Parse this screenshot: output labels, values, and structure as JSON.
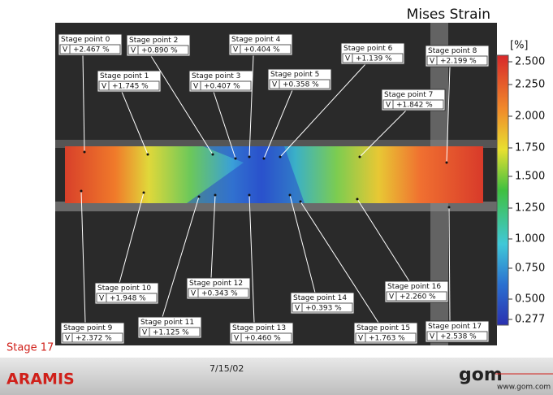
{
  "title": "Mises Strain",
  "colorbar": {
    "unit": "[%]",
    "ticks": [
      "2.500",
      "2.250",
      "2.000",
      "1.750",
      "1.500",
      "1.250",
      "1.000",
      "0.750",
      "0.500",
      "0.277"
    ]
  },
  "stage_points": [
    {
      "label": "Stage point 0",
      "type": "V",
      "value": "+2.467 %"
    },
    {
      "label": "Stage point 1",
      "type": "V",
      "value": "+1.745 %"
    },
    {
      "label": "Stage point 2",
      "type": "V",
      "value": "+0.890 %"
    },
    {
      "label": "Stage point 3",
      "type": "V",
      "value": "+0.407 %"
    },
    {
      "label": "Stage point 4",
      "type": "V",
      "value": "+0.404 %"
    },
    {
      "label": "Stage point 5",
      "type": "V",
      "value": "+0.358 %"
    },
    {
      "label": "Stage point 6",
      "type": "V",
      "value": "+1.139 %"
    },
    {
      "label": "Stage point 7",
      "type": "V",
      "value": "+1.842 %"
    },
    {
      "label": "Stage point 8",
      "type": "V",
      "value": "+2.199 %"
    },
    {
      "label": "Stage point 9",
      "type": "V",
      "value": "+2.372 %"
    },
    {
      "label": "Stage point 10",
      "type": "V",
      "value": "+1.948 %"
    },
    {
      "label": "Stage point 11",
      "type": "V",
      "value": "+1.125 %"
    },
    {
      "label": "Stage point 12",
      "type": "V",
      "value": "+0.343 %"
    },
    {
      "label": "Stage point 13",
      "type": "V",
      "value": "+0.460 %"
    },
    {
      "label": "Stage point 14",
      "type": "V",
      "value": "+0.393 %"
    },
    {
      "label": "Stage point 15",
      "type": "V",
      "value": "+1.763 %"
    },
    {
      "label": "Stage point 16",
      "type": "V",
      "value": "+2.260 %"
    },
    {
      "label": "Stage point 17",
      "type": "V",
      "value": "+2.538 %"
    }
  ],
  "footer": {
    "stage": "Stage 17",
    "product": "ARAMIS",
    "date": "7/15/02",
    "logo": "gom",
    "url": "www.gom.com"
  }
}
